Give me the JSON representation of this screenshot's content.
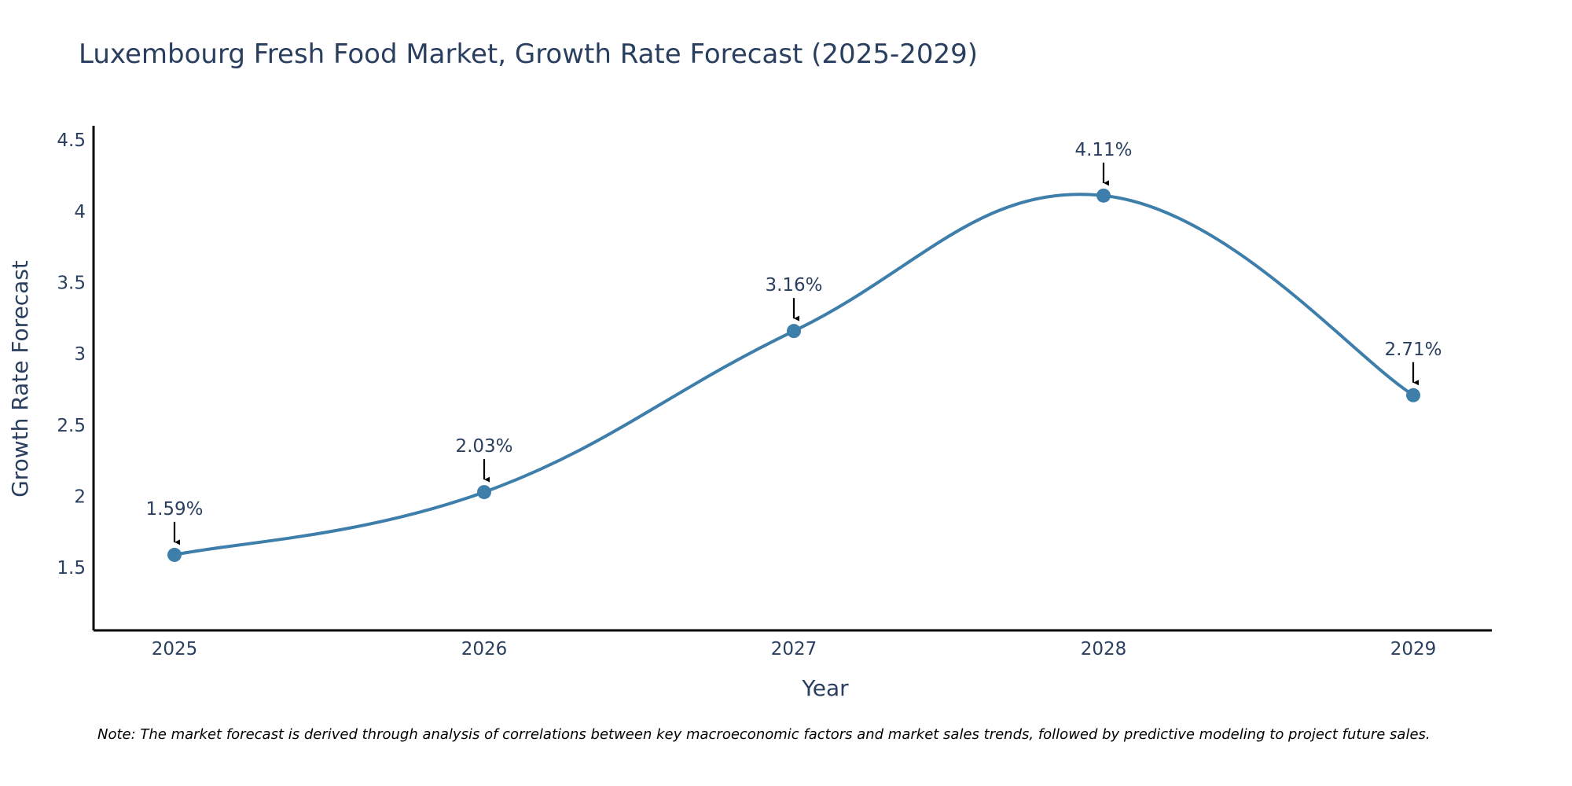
{
  "chart_data": {
    "type": "line",
    "title": "Luxembourg Fresh Food Market, Growth Rate Forecast (2025-2029)",
    "xlabel": "Year",
    "ylabel": "Growth Rate Forecast",
    "categories": [
      "2025",
      "2026",
      "2027",
      "2028",
      "2029"
    ],
    "values": [
      1.59,
      2.03,
      3.16,
      4.11,
      2.71
    ],
    "data_labels": [
      "1.59%",
      "2.03%",
      "3.16%",
      "4.11%",
      "2.71%"
    ],
    "y_ticks": [
      1.5,
      2,
      2.5,
      3,
      3.5,
      4,
      4.5
    ],
    "y_tick_labels": [
      "1.5",
      "2",
      "2.5",
      "3",
      "3.5",
      "4",
      "4.5"
    ],
    "ylim": [
      1.06,
      4.6
    ],
    "grid": false,
    "line_shape": "spline",
    "line_color": "#3d7eaa",
    "marker_color": "#3d7eaa",
    "arrow_color": "#000000",
    "note": "Note: The market forecast is derived through analysis of correlations between key macroeconomic factors and market sales trends, followed by predictive modeling to project future sales."
  }
}
